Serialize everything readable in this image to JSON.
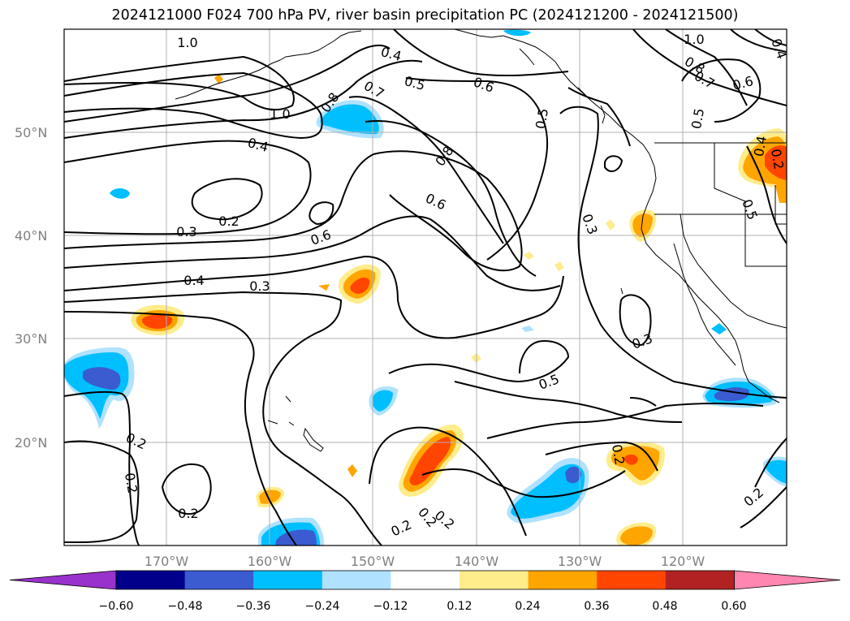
{
  "title": "2024121000 F024 700 hPa PV, river basin precipitation PC (2024121200 - 2024121500)",
  "map": {
    "lat_labels": [
      "50°N",
      "40°N",
      "30°N",
      "20°N"
    ],
    "lon_labels": [
      "170°W",
      "160°W",
      "150°W",
      "140°W",
      "130°W",
      "120°W"
    ],
    "contour_labels": [
      "1.0",
      "0.4",
      "0.5",
      "0.6",
      "0.7",
      "0.8",
      "1.0",
      "0.4",
      "0.2",
      "0.3",
      "0.6",
      "0.8",
      "0.6",
      "0.5",
      "0.4",
      "0.3",
      "0.4",
      "0.3",
      "1.0",
      "0.8",
      "0.7",
      "0.6",
      "0.5",
      "0.4",
      "0.5",
      "0.3",
      "0.2",
      "0.5",
      "0.2",
      "0.2",
      "0.2",
      "0.2",
      "0.2",
      "0.2",
      "0.2",
      "0.2"
    ]
  },
  "colorbar": {
    "ticks": [
      "−0.60",
      "−0.48",
      "−0.36",
      "−0.24",
      "−0.12",
      "0.12",
      "0.24",
      "0.36",
      "0.48",
      "0.60"
    ],
    "colors": [
      "#9932cc",
      "#00008b",
      "#3b5bd0",
      "#00bfff",
      "#b0e2ff",
      "#ffffff",
      "#ffec8b",
      "#ffa500",
      "#ff4500",
      "#b22222",
      "#ff86b0"
    ]
  },
  "colors": {
    "pos_light": "#ffec8b",
    "pos_mid": "#ffa500",
    "pos_high": "#ff4500",
    "neg_light": "#b0e2ff",
    "neg_mid": "#00bfff",
    "neg_high": "#3b5bd0"
  }
}
